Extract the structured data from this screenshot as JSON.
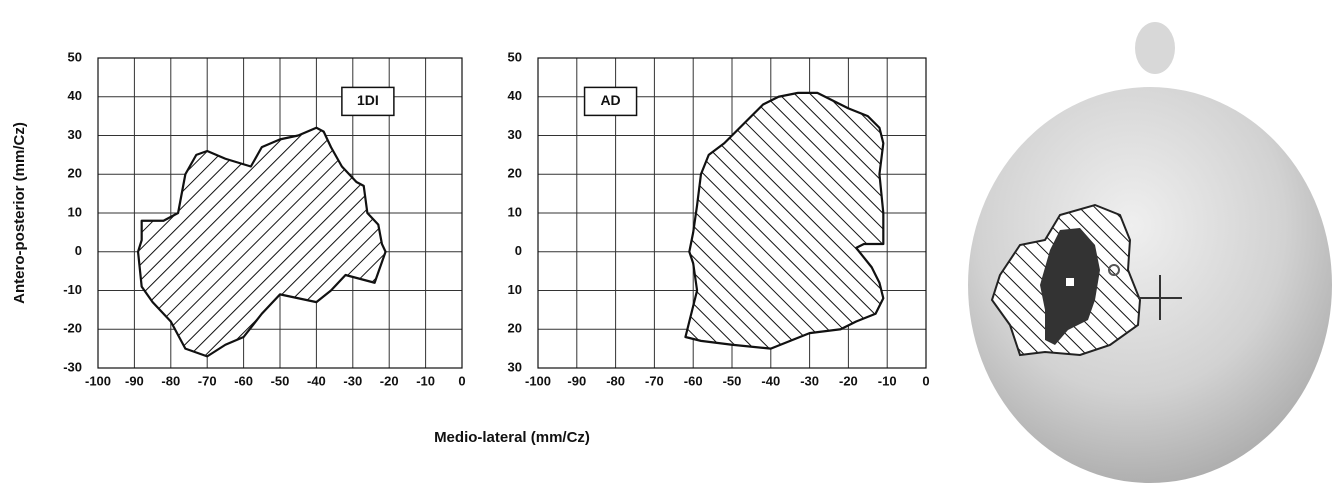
{
  "chart_data": [
    {
      "type": "area",
      "annotation": "1DI",
      "ylabel": "Antero-posterior (mm/Cz)",
      "xlabel": "Medio-lateral  (mm/Cz)",
      "x": [
        -88,
        -82,
        -78,
        -76,
        -73,
        -70,
        -65,
        -58,
        -55,
        -50,
        -45,
        -40,
        -38,
        -36,
        -33,
        -29,
        -27,
        -26,
        -25,
        -23,
        -22,
        -21,
        -24,
        -28,
        -32,
        -36,
        -40,
        -45,
        -50,
        -55,
        -60,
        -65,
        -70,
        -76,
        -80,
        -85,
        -88,
        -89,
        -88
      ],
      "y": [
        8,
        8,
        10,
        20,
        25,
        26,
        24,
        22,
        27,
        29,
        30,
        32,
        31,
        27,
        22,
        18,
        17,
        10,
        9,
        7,
        2,
        0,
        -8,
        -7,
        -6,
        -10,
        -13,
        -12,
        -11,
        -16,
        -22,
        -24,
        -27,
        -25,
        -18,
        -13,
        -9,
        0,
        3
      ],
      "color": "#111",
      "xlim": [
        -100,
        0
      ],
      "xticks": [
        -100,
        -90,
        -80,
        -70,
        -60,
        -50,
        -40,
        -30,
        -20,
        -10,
        0
      ],
      "ylim": [
        -30,
        50
      ],
      "yticks": [
        -30,
        -20,
        -10,
        0,
        10,
        20,
        30,
        40,
        50
      ],
      "grid": true
    },
    {
      "type": "area",
      "annotation": "AD",
      "x": [
        -58,
        -56,
        -52,
        -47,
        -42,
        -38,
        -33,
        -28,
        -24,
        -20,
        -15,
        -12,
        -11,
        -12,
        -11,
        -11,
        -16,
        -18,
        -14,
        -12,
        -11,
        -13,
        -18,
        -22,
        -30,
        -35,
        -40,
        -50,
        -58,
        -62,
        -61,
        -59,
        -60,
        -61,
        -60,
        -59
      ],
      "y": [
        20,
        25,
        28,
        33,
        38,
        40,
        41,
        41,
        39,
        37,
        35,
        32,
        28,
        20,
        10,
        2,
        2,
        1,
        -4,
        -8,
        -12,
        -16,
        -18,
        -20,
        -21,
        -23,
        -25,
        -24,
        -23,
        -22,
        -18,
        -10,
        -3,
        0,
        5,
        12
      ],
      "color": "#111",
      "xlim": [
        -100,
        0
      ],
      "xticks": [
        -100,
        -90,
        -80,
        -70,
        -60,
        -50,
        -40,
        -30,
        -20,
        -10,
        0
      ],
      "ylim": [
        -30,
        50
      ],
      "yticks": [
        {
          "value": -30,
          "label": "30"
        },
        {
          "value": -20,
          "label": "20"
        },
        {
          "value": -10,
          "label": "10"
        },
        0,
        10,
        20,
        30,
        40,
        50
      ],
      "grid": true
    }
  ]
}
